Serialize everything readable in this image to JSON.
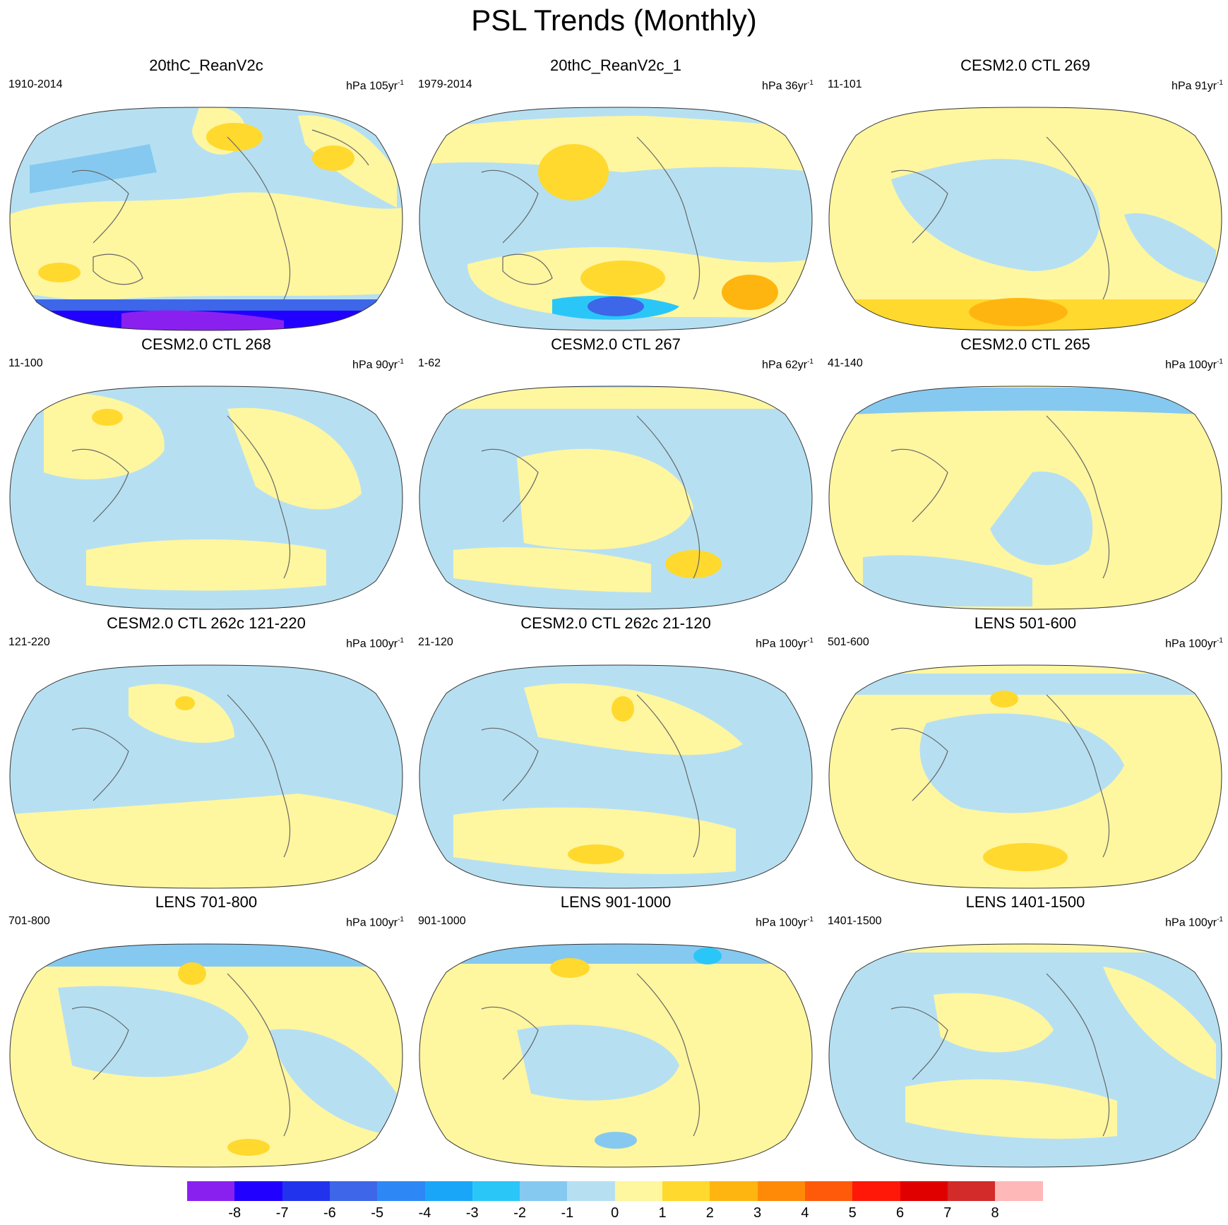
{
  "title": "PSL Trends (Monthly)",
  "colorbar": {
    "labels": [
      "-8",
      "-7",
      "-6",
      "-5",
      "-4",
      "-3",
      "-2",
      "-1",
      "0",
      "1",
      "2",
      "3",
      "4",
      "5",
      "6",
      "7",
      "8"
    ],
    "colors": [
      "#8a20f0",
      "#2200ff",
      "#2233ee",
      "#3d66e8",
      "#2d88f5",
      "#1aa6f8",
      "#2bc6f8",
      "#86c9f0",
      "#b6e0f2",
      "#fff6a0",
      "#ffd92e",
      "#ffb50f",
      "#ff8a08",
      "#ff5a0a",
      "#ff1808",
      "#e00000",
      "#d32a2a",
      "#ffb8b8"
    ]
  },
  "panels": [
    {
      "title": "20thC_ReanV2c",
      "range": "1910-2014",
      "units": "hPa 105yr",
      "units_exp": "-1"
    },
    {
      "title": "20thC_ReanV2c_1",
      "range": "1979-2014",
      "units": "hPa 36yr",
      "units_exp": "-1"
    },
    {
      "title": "CESM2.0 CTL 269",
      "range": "11-101",
      "units": "hPa 91yr",
      "units_exp": "-1"
    },
    {
      "title": "CESM2.0 CTL 268",
      "range": "11-100",
      "units": "hPa 90yr",
      "units_exp": "-1"
    },
    {
      "title": "CESM2.0 CTL 267",
      "range": "1-62",
      "units": "hPa 62yr",
      "units_exp": "-1"
    },
    {
      "title": "CESM2.0 CTL 265",
      "range": "41-140",
      "units": "hPa 100yr",
      "units_exp": "-1"
    },
    {
      "title": "CESM2.0 CTL 262c 121-220",
      "range": "121-220",
      "units": "hPa 100yr",
      "units_exp": "-1"
    },
    {
      "title": "CESM2.0 CTL 262c 21-120",
      "range": "21-120",
      "units": "hPa 100yr",
      "units_exp": "-1"
    },
    {
      "title": "LENS 501-600",
      "range": "501-600",
      "units": "hPa 100yr",
      "units_exp": "-1"
    },
    {
      "title": "LENS 701-800",
      "range": "701-800",
      "units": "hPa 100yr",
      "units_exp": "-1"
    },
    {
      "title": "LENS 901-1000",
      "range": "901-1000",
      "units": "hPa 100yr",
      "units_exp": "-1"
    },
    {
      "title": "LENS 1401-1500",
      "range": "1401-1500",
      "units": "hPa 100yr",
      "units_exp": "-1"
    }
  ]
}
